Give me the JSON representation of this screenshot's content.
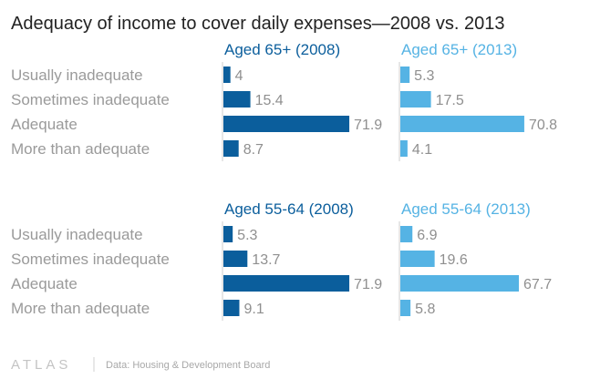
{
  "chart_data": {
    "type": "bar",
    "title": "Adequacy of income to cover daily expenses—2008 vs. 2013",
    "categories": [
      "Usually inadequate",
      "Sometimes inadequate",
      "Adequate",
      "More than adequate"
    ],
    "panels": [
      {
        "name": "Aged 65+ (2008)",
        "color": "#0b5e9c",
        "values": [
          4,
          15.4,
          71.9,
          8.7
        ]
      },
      {
        "name": "Aged 65+ (2013)",
        "color": "#55b3e4",
        "values": [
          5.3,
          17.5,
          70.8,
          4.1
        ]
      },
      {
        "name": "Aged 55-64 (2008)",
        "color": "#0b5e9c",
        "values": [
          5.3,
          13.7,
          71.9,
          9.1
        ]
      },
      {
        "name": "Aged 55-64 (2013)",
        "color": "#55b3e4",
        "values": [
          6.9,
          19.6,
          67.7,
          5.8
        ]
      }
    ],
    "xlim": [
      0,
      100
    ],
    "grid": false,
    "legend": "none"
  },
  "footer": {
    "logo": "ATLAS",
    "source": "Data: Housing & Development Board"
  },
  "colors": {
    "dark_blue": "#0b5e9c",
    "light_blue": "#55b3e4",
    "label_gray": "#9a9a9a",
    "axis_gray": "#cccccc"
  }
}
